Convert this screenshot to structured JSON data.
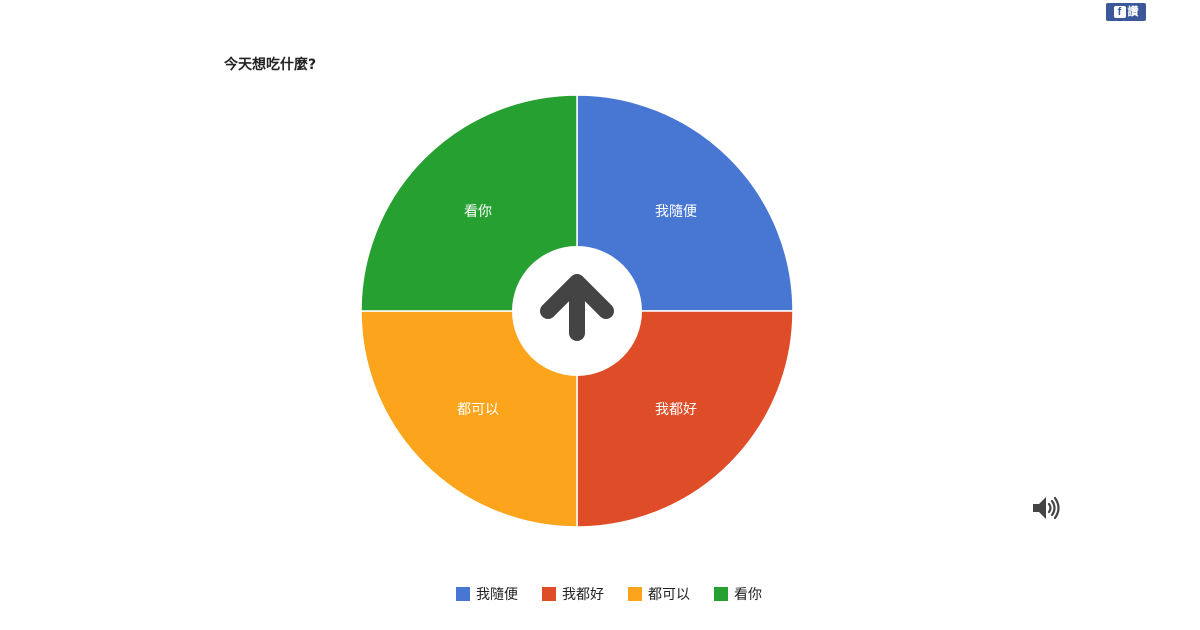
{
  "page": {
    "title": "今天想吃什麼?"
  },
  "share_button": {
    "icon": "facebook-icon",
    "label": "讚"
  },
  "sound_button": {
    "icon": "speaker-volume-icon"
  },
  "spin_button": {
    "icon": "arrow-up-icon"
  },
  "chart_data": {
    "type": "pie",
    "title": "今天想吃什麼?",
    "slices": [
      {
        "label": "我隨便",
        "value": 25,
        "color": "#4877d3"
      },
      {
        "label": "我都好",
        "value": 25,
        "color": "#df4c28"
      },
      {
        "label": "都可以",
        "value": 25,
        "color": "#fca41b"
      },
      {
        "label": "看你",
        "value": 25,
        "color": "#27a032"
      }
    ],
    "legend_position": "bottom"
  }
}
